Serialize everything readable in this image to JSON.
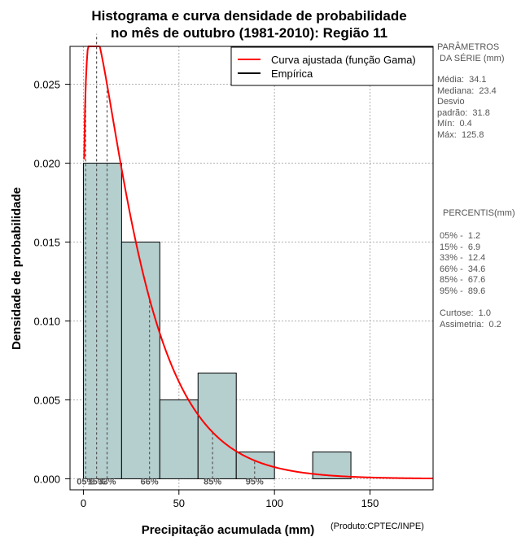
{
  "chart_data": {
    "type": "bar",
    "title_line1": "Histograma e curva densidade de probabilidade",
    "title_line2": "no mês de outubro (1981-2010): Região 11",
    "xlabel": "Precipitação acumulada (mm)",
    "ylabel": "Densidade de probabilidade",
    "credit": "(Produto:CPTEC/INPE)",
    "xlim": [
      -7,
      183
    ],
    "ylim": [
      -0.0007,
      0.0274
    ],
    "x_ticks": [
      0,
      50,
      100,
      150
    ],
    "y_ticks": [
      0.0,
      0.005,
      0.01,
      0.015,
      0.02,
      0.025
    ],
    "y_tick_labels": [
      "0.000",
      "0.005",
      "0.010",
      "0.015",
      "0.020",
      "0.025"
    ],
    "grid": true,
    "bins": [
      {
        "x0": 0,
        "x1": 20,
        "density": 0.02
      },
      {
        "x0": 20,
        "x1": 40,
        "density": 0.015
      },
      {
        "x0": 40,
        "x1": 60,
        "density": 0.005
      },
      {
        "x0": 60,
        "x1": 80,
        "density": 0.0067
      },
      {
        "x0": 80,
        "x1": 100,
        "density": 0.0017
      },
      {
        "x0": 100,
        "x1": 120,
        "density": 0.0
      },
      {
        "x0": 120,
        "x1": 140,
        "density": 0.0017
      }
    ],
    "gamma_fit": {
      "shape": 1.22,
      "scale": 22.0,
      "x_start": 0.4,
      "x_end": 183
    },
    "percentile_lines": [
      {
        "label": "05%",
        "x": 1.2
      },
      {
        "label": "15%",
        "x": 6.9
      },
      {
        "label": "33%",
        "x": 12.4
      },
      {
        "label": "66%",
        "x": 34.6
      },
      {
        "label": "85%",
        "x": 67.6
      },
      {
        "label": "95%",
        "x": 89.6
      }
    ],
    "percentile_label_text": [
      "05%",
      "15%",
      "33%",
      "66%",
      "85%",
      "95%"
    ],
    "legend": {
      "position": "top-right",
      "entries": [
        {
          "label": "Curva ajustada (função Gama)",
          "color": "#ff0000"
        },
        {
          "label": "Empírica",
          "color": "#000000"
        }
      ]
    },
    "colors": {
      "bar_fill": "#b5cece",
      "curve": "#ff0000",
      "grid": "#b0b0b0",
      "pct_line": "#555555"
    }
  },
  "side_panel": {
    "params_title_1": "PARÂMETROS",
    "params_title_2": " DA SÉRIE (mm)",
    "media": "Média:  34.1",
    "mediana": "Mediana:  23.4",
    "desvio_1": "Desvio",
    "desvio_2": "padrão:  31.8",
    "min": "Mín:  0.4",
    "max": "Máx:  125.8",
    "percentis_title": "PERCENTIS(mm)",
    "p05": "05% -  1.2",
    "p15": "15% -  6.9",
    "p33": "33% -  12.4",
    "p66": "66% -  34.6",
    "p85": "85% -  67.6",
    "p95": "95% -  89.6",
    "curtose": "Curtose:  1.0",
    "assimetria": "Assimetria:  0.2"
  }
}
